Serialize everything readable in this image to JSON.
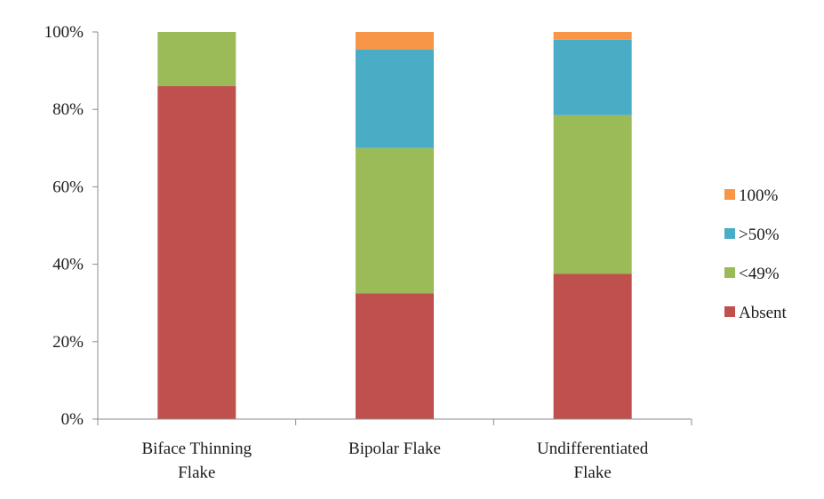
{
  "chart_data": {
    "type": "bar",
    "stacked": true,
    "percent_stacked": true,
    "categories": [
      [
        "Biface Thinning",
        "Flake"
      ],
      [
        "Bipolar Flake"
      ],
      [
        "Undifferentiated",
        "Flake"
      ]
    ],
    "series": [
      {
        "name": "Absent",
        "color": "#c0504d",
        "values": [
          86,
          32.5,
          37.5
        ]
      },
      {
        "name": "<49%",
        "color": "#9bbb59",
        "values": [
          14,
          37.5,
          41
        ]
      },
      {
        "name": ">50%",
        "color": "#4bacc6",
        "values": [
          0,
          25.5,
          19.5
        ]
      },
      {
        "name": "100%",
        "color": "#f79646",
        "values": [
          0,
          4.5,
          2
        ]
      }
    ],
    "y_ticks": [
      "0%",
      "20%",
      "40%",
      "60%",
      "80%",
      "100%"
    ],
    "ylim": [
      0,
      100
    ],
    "grid": false,
    "legend_position": "right",
    "legend_order": [
      "100%",
      ">50%",
      "<49%",
      "Absent"
    ]
  }
}
